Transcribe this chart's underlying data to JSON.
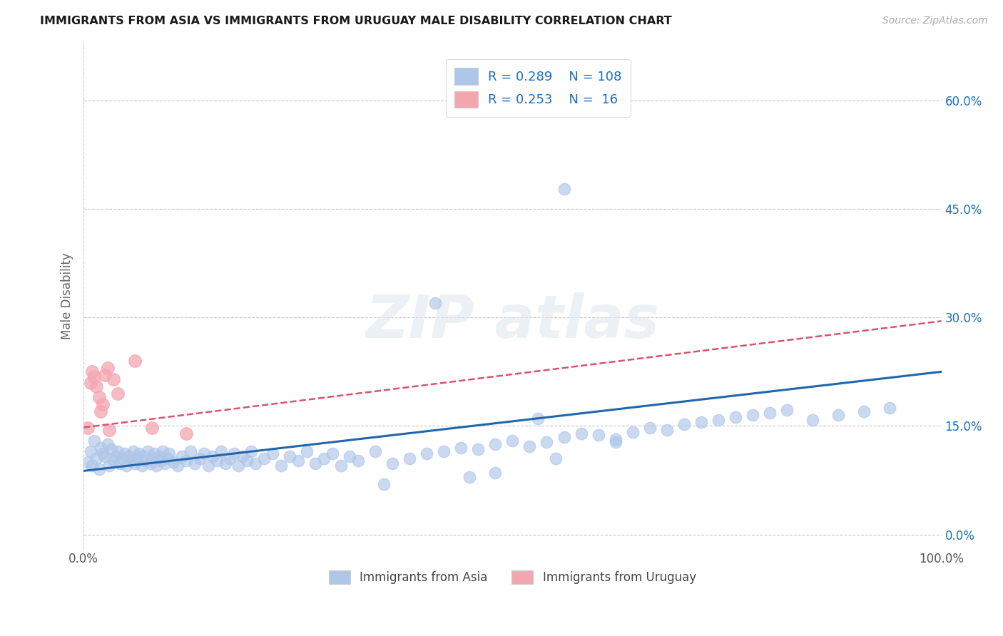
{
  "title": "IMMIGRANTS FROM ASIA VS IMMIGRANTS FROM URUGUAY MALE DISABILITY CORRELATION CHART",
  "source_text": "Source: ZipAtlas.com",
  "ylabel": "Male Disability",
  "xlim": [
    0.0,
    1.0
  ],
  "ylim": [
    -0.02,
    0.68
  ],
  "yticks": [
    0.0,
    0.15,
    0.3,
    0.45,
    0.6
  ],
  "ytick_labels": [
    "0.0%",
    "15.0%",
    "30.0%",
    "45.0%",
    "60.0%"
  ],
  "xticks": [
    0.0,
    1.0
  ],
  "xtick_labels": [
    "0.0%",
    "100.0%"
  ],
  "asia_R": 0.289,
  "asia_N": 108,
  "uruguay_R": 0.253,
  "uruguay_N": 16,
  "asia_color": "#aec6e8",
  "asia_line_color": "#2166ac",
  "uruguay_color": "#f4a6b0",
  "uruguay_line_color": "#d9546e",
  "legend_text_color": "#1a6fba",
  "background_color": "#ffffff",
  "grid_color": "#c8c8c8",
  "asia_scatter_x": [
    0.005,
    0.008,
    0.01,
    0.012,
    0.015,
    0.018,
    0.02,
    0.022,
    0.025,
    0.028,
    0.03,
    0.032,
    0.035,
    0.038,
    0.04,
    0.042,
    0.045,
    0.048,
    0.05,
    0.052,
    0.055,
    0.058,
    0.06,
    0.062,
    0.065,
    0.068,
    0.07,
    0.072,
    0.075,
    0.078,
    0.08,
    0.082,
    0.085,
    0.088,
    0.09,
    0.092,
    0.095,
    0.098,
    0.1,
    0.105,
    0.11,
    0.115,
    0.12,
    0.125,
    0.13,
    0.135,
    0.14,
    0.145,
    0.15,
    0.155,
    0.16,
    0.165,
    0.17,
    0.175,
    0.18,
    0.185,
    0.19,
    0.195,
    0.2,
    0.21,
    0.22,
    0.23,
    0.24,
    0.25,
    0.26,
    0.27,
    0.28,
    0.29,
    0.3,
    0.31,
    0.32,
    0.34,
    0.36,
    0.38,
    0.4,
    0.42,
    0.44,
    0.46,
    0.48,
    0.5,
    0.52,
    0.54,
    0.56,
    0.58,
    0.6,
    0.62,
    0.64,
    0.66,
    0.68,
    0.7,
    0.72,
    0.74,
    0.76,
    0.78,
    0.8,
    0.82,
    0.85,
    0.88,
    0.91,
    0.94,
    0.45,
    0.55,
    0.35,
    0.48,
    0.41,
    0.62,
    0.53,
    0.56
  ],
  "asia_scatter_y": [
    0.1,
    0.115,
    0.095,
    0.13,
    0.105,
    0.09,
    0.12,
    0.112,
    0.108,
    0.125,
    0.095,
    0.118,
    0.102,
    0.108,
    0.115,
    0.098,
    0.105,
    0.112,
    0.095,
    0.108,
    0.102,
    0.115,
    0.098,
    0.105,
    0.112,
    0.095,
    0.108,
    0.102,
    0.115,
    0.098,
    0.105,
    0.112,
    0.095,
    0.108,
    0.102,
    0.115,
    0.098,
    0.105,
    0.112,
    0.1,
    0.095,
    0.108,
    0.102,
    0.115,
    0.098,
    0.105,
    0.112,
    0.095,
    0.108,
    0.102,
    0.115,
    0.098,
    0.105,
    0.112,
    0.095,
    0.108,
    0.102,
    0.115,
    0.098,
    0.105,
    0.112,
    0.095,
    0.108,
    0.102,
    0.115,
    0.098,
    0.105,
    0.112,
    0.095,
    0.108,
    0.102,
    0.115,
    0.098,
    0.105,
    0.112,
    0.115,
    0.12,
    0.118,
    0.125,
    0.13,
    0.122,
    0.128,
    0.135,
    0.14,
    0.138,
    0.132,
    0.142,
    0.148,
    0.145,
    0.152,
    0.155,
    0.158,
    0.162,
    0.165,
    0.168,
    0.172,
    0.158,
    0.165,
    0.17,
    0.175,
    0.08,
    0.105,
    0.07,
    0.085,
    0.32,
    0.128,
    0.16,
    0.478
  ],
  "uruguay_scatter_x": [
    0.005,
    0.008,
    0.01,
    0.012,
    0.015,
    0.018,
    0.02,
    0.022,
    0.025,
    0.028,
    0.03,
    0.035,
    0.04,
    0.06,
    0.08,
    0.12
  ],
  "uruguay_scatter_y": [
    0.148,
    0.21,
    0.225,
    0.218,
    0.205,
    0.19,
    0.17,
    0.18,
    0.22,
    0.23,
    0.145,
    0.215,
    0.195,
    0.24,
    0.148,
    0.14
  ],
  "asia_trend_x0": 0.0,
  "asia_trend_x1": 1.0,
  "asia_trend_y0": 0.088,
  "asia_trend_y1": 0.225,
  "uruguay_trend_x0": 0.0,
  "uruguay_trend_x1": 1.0,
  "uruguay_trend_y0": 0.148,
  "uruguay_trend_y1": 0.295
}
